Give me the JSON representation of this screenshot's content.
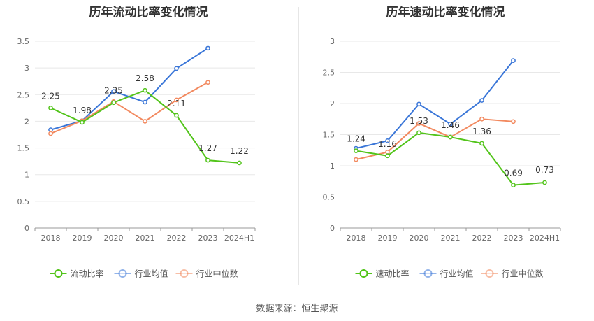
{
  "source_note": "数据来源：恒生聚源",
  "colors": {
    "series1": "#52c41a",
    "series2": "#3a76d8",
    "series3": "#f2895f",
    "grid": "#e8e8e8",
    "axis": "#999999",
    "text": "#333333"
  },
  "chart_data": [
    {
      "type": "line",
      "title": "历年流动比率变化情况",
      "categories": [
        "2018",
        "2019",
        "2020",
        "2021",
        "2022",
        "2023",
        "2024H1"
      ],
      "ylim": [
        0,
        3.5
      ],
      "yticks": [
        "0",
        "0.5",
        "1",
        "1.5",
        "2",
        "2.5",
        "3",
        "3.5"
      ],
      "grid": true,
      "legend_position": "bottom",
      "series": [
        {
          "name": "流动比率",
          "color": "#52c41a",
          "labels": true,
          "values": [
            2.25,
            1.98,
            2.35,
            2.58,
            2.11,
            1.27,
            1.22
          ],
          "data_labels": [
            "2.25",
            "1.98",
            "2.35",
            "2.58",
            "2.11",
            "1.27",
            "1.22"
          ]
        },
        {
          "name": "行业均值",
          "color": "#3a76d8",
          "labels": false,
          "values": [
            1.84,
            2.01,
            2.56,
            2.36,
            2.99,
            3.37,
            null
          ]
        },
        {
          "name": "行业中位数",
          "color": "#f2895f",
          "labels": false,
          "values": [
            1.77,
            2.01,
            2.37,
            2.0,
            2.4,
            2.73,
            null
          ]
        }
      ]
    },
    {
      "type": "line",
      "title": "历年速动比率变化情况",
      "categories": [
        "2018",
        "2019",
        "2020",
        "2021",
        "2022",
        "2023",
        "2024H1"
      ],
      "ylim": [
        0,
        3
      ],
      "yticks": [
        "0",
        "0.5",
        "1",
        "1.5",
        "2",
        "2.5",
        "3"
      ],
      "grid": true,
      "legend_position": "bottom",
      "series": [
        {
          "name": "速动比率",
          "color": "#52c41a",
          "labels": true,
          "values": [
            1.24,
            1.16,
            1.53,
            1.46,
            1.36,
            0.69,
            0.73
          ],
          "data_labels": [
            "1.24",
            "1.16",
            "1.53",
            "1.46",
            "1.36",
            "0.69",
            "0.73"
          ]
        },
        {
          "name": "行业均值",
          "color": "#3a76d8",
          "labels": false,
          "values": [
            1.28,
            1.4,
            1.99,
            1.67,
            2.05,
            2.69,
            null
          ]
        },
        {
          "name": "行业中位数",
          "color": "#f2895f",
          "labels": false,
          "values": [
            1.1,
            1.22,
            1.68,
            1.46,
            1.75,
            1.71,
            null
          ]
        }
      ]
    }
  ]
}
